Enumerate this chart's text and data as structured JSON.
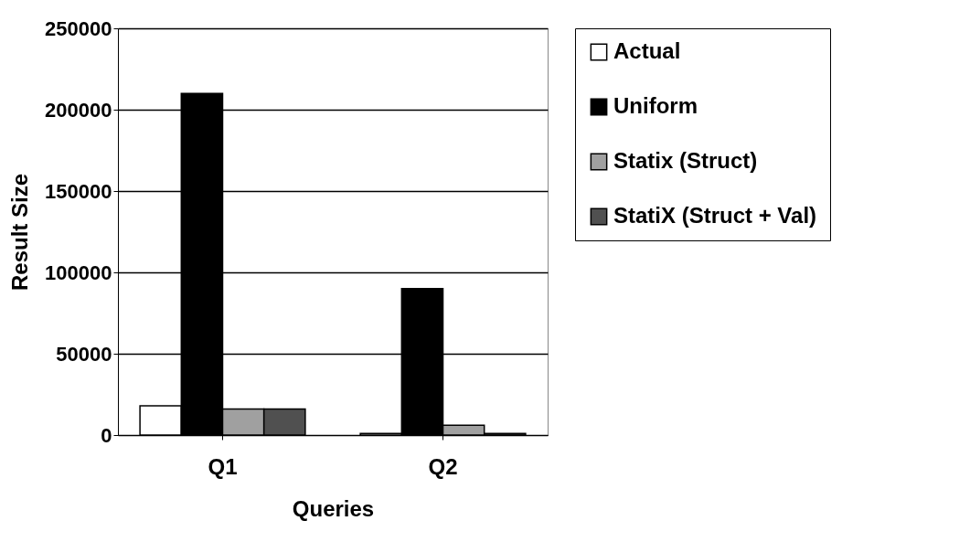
{
  "chart_data": {
    "type": "bar",
    "xlabel": "Queries",
    "ylabel": "Result Size",
    "categories": [
      "Q1",
      "Q2"
    ],
    "series": [
      {
        "name": "Actual",
        "color": "#ffffff",
        "values": [
          18000,
          1000
        ]
      },
      {
        "name": "Uniform",
        "color": "#000000",
        "values": [
          210000,
          90000
        ]
      },
      {
        "name": "Statix (Struct)",
        "color": "#a0a0a0",
        "values": [
          16000,
          6000
        ]
      },
      {
        "name": "StatiX (Struct + Val)",
        "color": "#505050",
        "values": [
          16000,
          1000
        ]
      }
    ],
    "ylim": [
      0,
      250000
    ],
    "yticks": [
      0,
      50000,
      100000,
      150000,
      200000,
      250000
    ],
    "grid": "y",
    "legend": "right"
  }
}
